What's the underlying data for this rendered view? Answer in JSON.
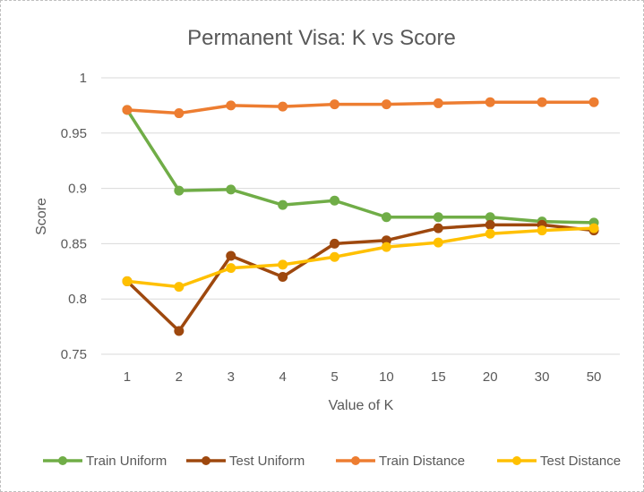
{
  "chart_data": {
    "type": "line",
    "title": "Permanent Visa: K vs Score",
    "xlabel": "Value of K",
    "ylabel": "Score",
    "categories": [
      "1",
      "2",
      "3",
      "4",
      "5",
      "10",
      "15",
      "20",
      "30",
      "50"
    ],
    "ylim": [
      0.75,
      1
    ],
    "yticks": [
      "0.75",
      "0.8",
      "0.85",
      "0.9",
      "0.95",
      "1"
    ],
    "grid": "horizontal",
    "legend_position": "bottom",
    "series": [
      {
        "name": "Train Uniform",
        "color": "#70ad47",
        "values": [
          0.971,
          0.898,
          0.899,
          0.885,
          0.889,
          0.874,
          0.874,
          0.874,
          0.87,
          0.869
        ]
      },
      {
        "name": "Test Uniform",
        "color": "#9e480e",
        "values": [
          0.816,
          0.771,
          0.839,
          0.82,
          0.85,
          0.853,
          0.864,
          0.867,
          0.867,
          0.862
        ]
      },
      {
        "name": "Train Distance",
        "color": "#ed7d31",
        "values": [
          0.971,
          0.968,
          0.975,
          0.974,
          0.976,
          0.976,
          0.977,
          0.978,
          0.978,
          0.978
        ]
      },
      {
        "name": "Test Distance",
        "color": "#ffc000",
        "values": [
          0.816,
          0.811,
          0.828,
          0.831,
          0.838,
          0.847,
          0.851,
          0.859,
          0.862,
          0.864
        ]
      }
    ]
  }
}
